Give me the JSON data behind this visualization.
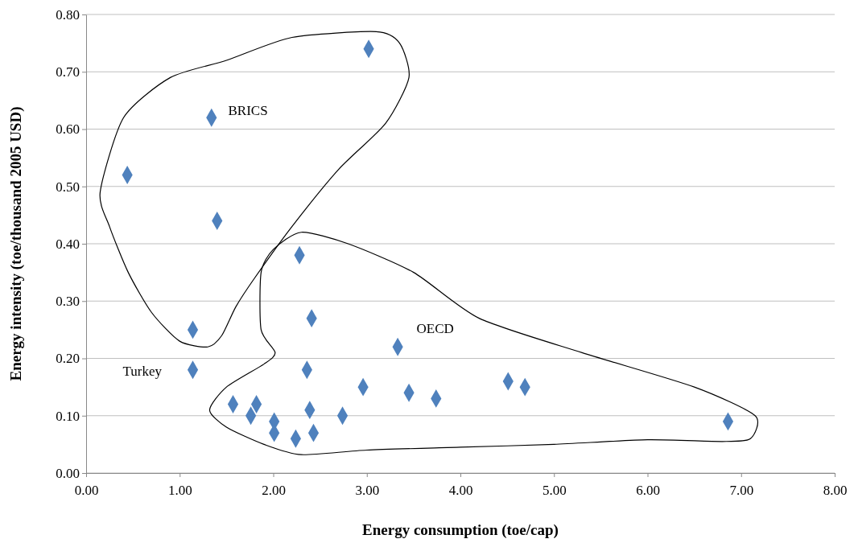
{
  "chart_data": {
    "type": "scatter",
    "xlabel": "Energy consumption (toe/cap)",
    "ylabel": "Energy intensity (toe/thousand 2005 USD)",
    "x": [
      3.02,
      1.34,
      0.44,
      1.4,
      2.28,
      1.14,
      2.41,
      3.33,
      1.14,
      2.36,
      2.96,
      3.45,
      3.74,
      4.51,
      4.69,
      6.86,
      1.57,
      1.82,
      1.76,
      2.01,
      2.01,
      2.24,
      2.43,
      2.39,
      2.74
    ],
    "values": [
      0.74,
      0.62,
      0.52,
      0.44,
      0.38,
      0.25,
      0.27,
      0.22,
      0.18,
      0.18,
      0.15,
      0.14,
      0.13,
      0.16,
      0.15,
      0.09,
      0.12,
      0.12,
      0.1,
      0.09,
      0.07,
      0.06,
      0.07,
      0.11,
      0.1
    ],
    "color": "#4f81bd",
    "marker": "diamond",
    "grid": "y",
    "xlim": [
      0,
      8
    ],
    "xticks": [
      {
        "value": 0,
        "label": "0.00"
      },
      {
        "value": 1,
        "label": "1.00"
      },
      {
        "value": 2,
        "label": "2.00"
      },
      {
        "value": 3,
        "label": "3.00"
      },
      {
        "value": 4,
        "label": "4.00"
      },
      {
        "value": 5,
        "label": "5.00"
      },
      {
        "value": 6,
        "label": "6.00"
      },
      {
        "value": 7,
        "label": "7.00"
      },
      {
        "value": 8,
        "label": "8.00"
      }
    ],
    "ylim": [
      0,
      0.8
    ],
    "yticks": [
      {
        "value": 0,
        "label": "0.00"
      },
      {
        "value": 0.1,
        "label": "0.10"
      },
      {
        "value": 0.2,
        "label": "0.20"
      },
      {
        "value": 0.3,
        "label": "0.30"
      },
      {
        "value": 0.4,
        "label": "0.40"
      },
      {
        "value": 0.5,
        "label": "0.50"
      },
      {
        "value": 0.6,
        "label": "0.60"
      },
      {
        "value": 0.7,
        "label": "0.70"
      },
      {
        "value": 0.8,
        "label": "0.80"
      }
    ],
    "annotations": [
      "BRICS",
      "OECD",
      "Turkey"
    ]
  }
}
